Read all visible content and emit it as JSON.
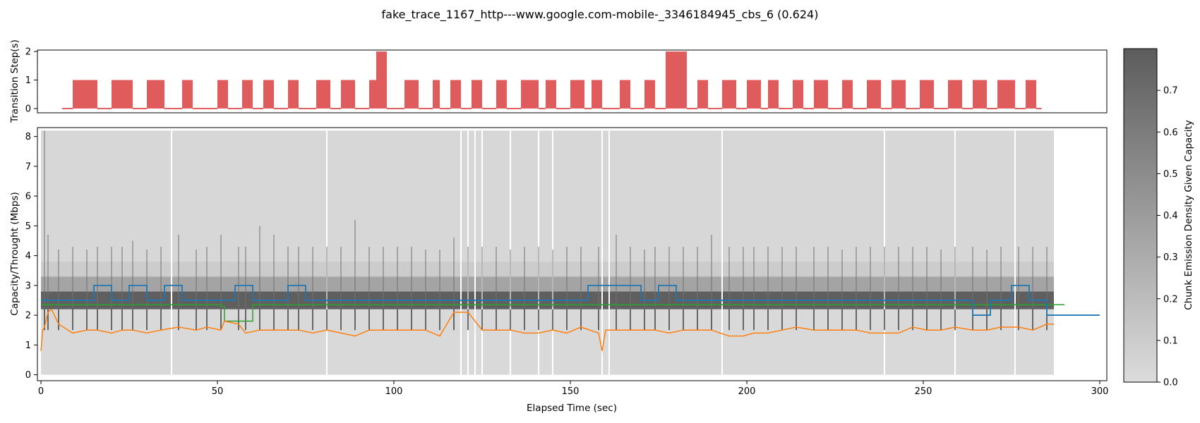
{
  "title": "fake_trace_1167_http---www.google.com-mobile-_3346184945_cbs_6 (0.624)",
  "colors": {
    "transition_bars": "#e05c5c",
    "capacity_line": "#1f77b4",
    "throughput_line": "#ff7f0e",
    "estimate_line": "#2ca02c",
    "density_low": "#dcdcdc",
    "density_high": "#5c5c5c",
    "separator": "#ffffff"
  },
  "chart_data": [
    {
      "type": "bar",
      "panel": "transition",
      "ylabel": "Transition Step(s)",
      "xlim": [
        -1,
        302
      ],
      "ylim": [
        -0.15,
        2.05
      ],
      "yticks": [
        0,
        1,
        2
      ],
      "starts": [
        6,
        9,
        16,
        20,
        26,
        30,
        35,
        40,
        43,
        50,
        53,
        57,
        60,
        63,
        66,
        70,
        73,
        78,
        82,
        85,
        89,
        93,
        95,
        98,
        103,
        107,
        111,
        113,
        116,
        119,
        122,
        125,
        129,
        132,
        136,
        141,
        143,
        146,
        150,
        154,
        156,
        159,
        164,
        167,
        171,
        174,
        177,
        183,
        186,
        189,
        193,
        197,
        200,
        204,
        206,
        209,
        213,
        216,
        219,
        223,
        227,
        230,
        234,
        238,
        241,
        245,
        249,
        253,
        257,
        261,
        264,
        268,
        271,
        276,
        279,
        282
      ],
      "values": [
        0,
        1,
        0,
        1,
        0,
        1,
        0,
        1,
        0,
        1,
        0,
        1,
        0,
        1,
        0,
        1,
        0,
        1,
        0,
        1,
        0,
        1,
        2,
        0,
        1,
        0,
        1,
        0,
        1,
        0,
        1,
        0,
        1,
        0,
        1,
        0,
        1,
        0,
        1,
        0,
        1,
        0,
        1,
        0,
        1,
        0,
        2,
        0,
        1,
        0,
        1,
        0,
        1,
        0,
        1,
        0,
        1,
        0,
        1,
        0,
        1,
        0,
        1,
        0,
        1,
        0,
        1,
        0,
        1,
        0,
        1,
        0,
        1,
        0,
        1,
        0
      ]
    },
    {
      "type": "line",
      "panel": "capacity",
      "xlabel": "Elapsed Time (sec)",
      "ylabel": "Capacity/Throught (Mbps)",
      "xlim": [
        -1,
        302
      ],
      "ylim": [
        -0.2,
        8.3
      ],
      "xticks": [
        0,
        50,
        100,
        150,
        200,
        250,
        300
      ],
      "yticks": [
        0,
        1,
        2,
        3,
        4,
        5,
        6,
        7,
        8
      ],
      "density_extent": [
        0,
        287
      ],
      "density_bands": [
        {
          "y": [
            0,
            2.2
          ],
          "level": 0.02
        },
        {
          "y": [
            2.2,
            2.8
          ],
          "level": 0.78
        },
        {
          "y": [
            2.8,
            3.3
          ],
          "level": 0.35
        },
        {
          "y": [
            3.3,
            3.8
          ],
          "level": 0.1
        },
        {
          "y": [
            3.8,
            8.2
          ],
          "level": 0.03
        }
      ],
      "separators": [
        37,
        81,
        119,
        121,
        123,
        125,
        133,
        141,
        145,
        159,
        161,
        193,
        239,
        259,
        276
      ],
      "spike_times": [
        1,
        2,
        5,
        9,
        13,
        16,
        20,
        23,
        26,
        30,
        34,
        39,
        44,
        47,
        51,
        56,
        58,
        62,
        66,
        70,
        73,
        77,
        81,
        85,
        89,
        93,
        97,
        101,
        105,
        109,
        113,
        117,
        121,
        125,
        129,
        133,
        137,
        141,
        145,
        149,
        153,
        158,
        163,
        167,
        171,
        174,
        178,
        182,
        186,
        190,
        195,
        199,
        202,
        206,
        210,
        214,
        219,
        223,
        227,
        231,
        235,
        239,
        243,
        247,
        251,
        255,
        259,
        264,
        268,
        272,
        277,
        281,
        285
      ],
      "spike_heights": [
        8.2,
        4.7,
        4.2,
        4.3,
        4.2,
        4.3,
        4.3,
        4.3,
        4.5,
        4.2,
        4.3,
        4.7,
        4.2,
        4.3,
        4.7,
        4.3,
        4.3,
        5.0,
        4.7,
        4.3,
        4.3,
        4.3,
        4.3,
        4.3,
        5.2,
        4.3,
        4.3,
        4.3,
        4.3,
        4.2,
        4.2,
        4.6,
        4.3,
        4.3,
        4.3,
        4.2,
        4.3,
        4.3,
        4.2,
        4.3,
        4.3,
        4.3,
        4.7,
        4.3,
        4.2,
        4.3,
        4.3,
        4.3,
        4.3,
        4.7,
        4.3,
        4.3,
        4.3,
        4.3,
        4.3,
        4.3,
        4.3,
        4.3,
        4.2,
        4.3,
        4.3,
        4.3,
        4.3,
        4.3,
        4.3,
        4.2,
        4.3,
        4.3,
        4.2,
        4.3,
        4.3,
        4.3,
        4.3
      ],
      "series": [
        {
          "role": "capacity",
          "x": [
            0,
            15,
            15,
            20,
            20,
            25,
            25,
            30,
            30,
            35,
            35,
            40,
            40,
            51,
            51,
            55,
            55,
            60,
            60,
            70,
            70,
            75,
            75,
            155,
            155,
            165,
            165,
            170,
            170,
            175,
            175,
            180,
            180,
            264,
            264,
            269,
            269,
            275,
            275,
            280,
            280,
            285,
            285,
            300
          ],
          "y": [
            2.5,
            2.5,
            3.0,
            3.0,
            2.5,
            2.5,
            3.0,
            3.0,
            2.5,
            2.5,
            3.0,
            3.0,
            2.5,
            2.5,
            2.5,
            2.5,
            3.0,
            3.0,
            2.5,
            2.5,
            3.0,
            3.0,
            2.5,
            2.5,
            3.0,
            3.0,
            3.0,
            3.0,
            2.5,
            2.5,
            3.0,
            3.0,
            2.5,
            2.5,
            2.0,
            2.0,
            2.5,
            2.5,
            3.0,
            3.0,
            2.5,
            2.5,
            2.0,
            2.0
          ]
        },
        {
          "role": "estimate",
          "x": [
            0,
            51,
            51,
            52,
            52,
            60,
            60,
            290
          ],
          "y": [
            2.35,
            2.35,
            2.3,
            2.3,
            1.8,
            1.8,
            2.35,
            2.35
          ]
        },
        {
          "role": "throughput",
          "x": [
            0,
            0.5,
            1,
            2,
            3,
            5,
            9,
            13,
            16,
            20,
            23,
            26,
            30,
            34,
            39,
            44,
            47,
            51,
            52,
            56,
            58,
            62,
            66,
            70,
            73,
            77,
            81,
            85,
            89,
            93,
            97,
            101,
            105,
            109,
            113,
            117,
            121,
            125,
            129,
            133,
            137,
            141,
            145,
            149,
            153,
            158,
            159,
            160,
            163,
            167,
            171,
            174,
            178,
            182,
            186,
            190,
            195,
            199,
            202,
            206,
            210,
            214,
            219,
            223,
            227,
            231,
            235,
            239,
            243,
            247,
            251,
            255,
            259,
            264,
            268,
            272,
            277,
            281,
            285,
            287
          ],
          "y": [
            0.8,
            1.5,
            1.6,
            2.1,
            2.2,
            1.7,
            1.4,
            1.5,
            1.5,
            1.4,
            1.5,
            1.5,
            1.4,
            1.5,
            1.6,
            1.5,
            1.6,
            1.5,
            1.8,
            1.7,
            1.4,
            1.5,
            1.5,
            1.5,
            1.5,
            1.4,
            1.5,
            1.4,
            1.3,
            1.5,
            1.5,
            1.5,
            1.5,
            1.5,
            1.3,
            2.1,
            2.1,
            1.5,
            1.5,
            1.5,
            1.4,
            1.4,
            1.5,
            1.4,
            1.6,
            1.4,
            0.8,
            1.5,
            1.5,
            1.5,
            1.5,
            1.5,
            1.4,
            1.5,
            1.5,
            1.5,
            1.3,
            1.3,
            1.4,
            1.4,
            1.5,
            1.6,
            1.5,
            1.5,
            1.5,
            1.5,
            1.4,
            1.4,
            1.4,
            1.6,
            1.5,
            1.5,
            1.6,
            1.5,
            1.5,
            1.6,
            1.6,
            1.5,
            1.7,
            1.7
          ]
        }
      ]
    }
  ],
  "colorbar": {
    "label": "Chunk Emission Density Given Capacity",
    "range": [
      0,
      0.8
    ],
    "ticks": [
      0.0,
      0.1,
      0.2,
      0.3,
      0.4,
      0.5,
      0.6,
      0.7
    ]
  }
}
